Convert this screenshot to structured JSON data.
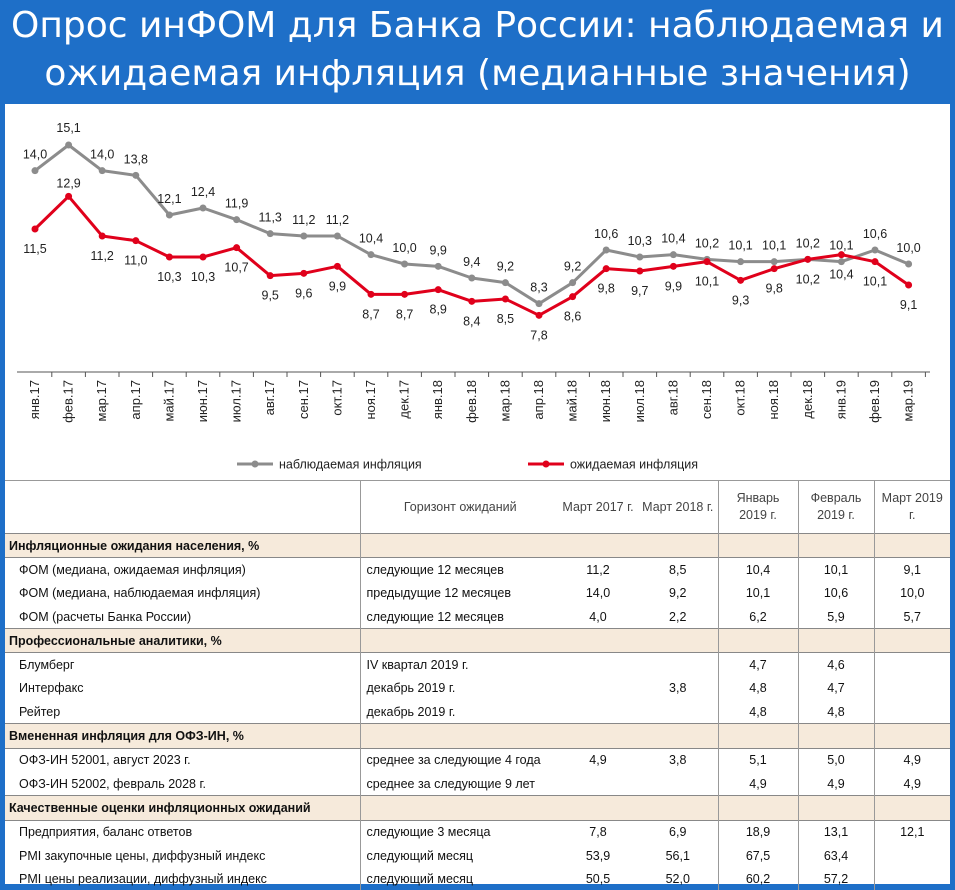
{
  "banner": {
    "line1": "Опрос инФОМ для Банка России: наблюдаемая и",
    "line2": "ожидаемая инфляция (медианные значения)"
  },
  "chart_data": {
    "type": "line",
    "categories": [
      "янв.17",
      "фев.17",
      "мар.17",
      "апр.17",
      "май.17",
      "июн.17",
      "июл.17",
      "авг.17",
      "сен.17",
      "окт.17",
      "ноя.17",
      "дек.17",
      "янв.18",
      "фев.18",
      "мар.18",
      "апр.18",
      "май.18",
      "июн.18",
      "июл.18",
      "авг.18",
      "сен.18",
      "окт.18",
      "ноя.18",
      "дек.18",
      "янв.19",
      "фев.19",
      "мар.19"
    ],
    "series": [
      {
        "name": "наблюдаемая инфляция",
        "color": "#8c8c8c",
        "values": [
          14.0,
          15.1,
          14.0,
          13.8,
          12.1,
          12.4,
          11.9,
          11.3,
          11.2,
          11.2,
          10.4,
          10.0,
          9.9,
          9.4,
          9.2,
          8.3,
          9.2,
          10.6,
          10.3,
          10.4,
          10.2,
          10.1,
          10.1,
          10.2,
          10.1,
          10.6,
          10.0
        ],
        "labels": [
          "14,0",
          "15,1",
          "14,0",
          "13,8",
          "12,1",
          "12,4",
          "11,9",
          "11,3",
          "11,2",
          "11,2",
          "10,4",
          "10,0",
          "9,9",
          "9,4",
          "9,2",
          "8,3",
          "9,2",
          "10,6",
          "10,3",
          "10,4",
          "10,2",
          "10,1",
          "10,1",
          "10,2",
          "10,1",
          "10,6",
          "10,0"
        ]
      },
      {
        "name": "ожидаемая инфляция",
        "color": "#e0001b",
        "values": [
          11.5,
          12.9,
          11.2,
          11.0,
          10.3,
          10.3,
          10.7,
          9.5,
          9.6,
          9.9,
          8.7,
          8.7,
          8.9,
          8.4,
          8.5,
          7.8,
          8.6,
          9.8,
          9.7,
          9.9,
          10.1,
          9.3,
          9.8,
          10.2,
          10.4,
          10.1,
          9.1
        ],
        "labels": [
          "11,5",
          "12,9",
          "11,2",
          "11,0",
          "10,3",
          "10,3",
          "10,7",
          "9,5",
          "9,6",
          "9,9",
          "8,7",
          "8,7",
          "8,9",
          "8,4",
          "8,5",
          "7,8",
          "8,6",
          "9,8",
          "9,7",
          "9,9",
          "10,1",
          "9,3",
          "9,8",
          "10,2",
          "10,4",
          "10,1",
          "9,1"
        ]
      }
    ],
    "ylim": [
      7.0,
      16.0
    ],
    "grid": false,
    "legend": "bottom"
  },
  "table": {
    "header": {
      "horizon": "Горизонт ожиданий",
      "cols": [
        "Март 2017 г.",
        "Март 2018 г.",
        "Январь 2019 г.",
        "Февраль 2019 г.",
        "Март 2019 г."
      ]
    },
    "sections": [
      {
        "title": "Инфляционные ожидания населения, %",
        "rows": [
          {
            "label": "ФОМ (медиана, ожидаемая инфляция)",
            "horizon": "следующие 12 месяцев",
            "values": [
              "11,2",
              "8,5",
              "10,4",
              "10,1",
              "9,1"
            ]
          },
          {
            "label": "ФОМ (медиана, наблюдаемая инфляция)",
            "horizon": "предыдущие 12 месяцев",
            "values": [
              "14,0",
              "9,2",
              "10,1",
              "10,6",
              "10,0"
            ]
          },
          {
            "label": "ФОМ (расчеты Банка России)",
            "horizon": "следующие 12 месяцев",
            "values": [
              "4,0",
              "2,2",
              "6,2",
              "5,9",
              "5,7"
            ]
          }
        ]
      },
      {
        "title": "Профессиональные аналитики, %",
        "rows": [
          {
            "label": "Блумберг",
            "horizon": "IV квартал 2019 г.",
            "values": [
              "",
              "",
              "4,7",
              "4,6",
              ""
            ]
          },
          {
            "label": "Интерфакс",
            "horizon": "декабрь 2019 г.",
            "values": [
              "",
              "3,8",
              "4,8",
              "4,7",
              ""
            ]
          },
          {
            "label": "Рейтер",
            "horizon": "декабрь 2019 г.",
            "values": [
              "",
              "",
              "4,8",
              "4,8",
              ""
            ]
          }
        ]
      },
      {
        "title": "Вмененная инфляция для ОФЗ-ИН, %",
        "rows": [
          {
            "label": "ОФЗ-ИН 52001, август 2023 г.",
            "horizon": "среднее за следующие 4 года",
            "values": [
              "4,9",
              "3,8",
              "5,1",
              "5,0",
              "4,9"
            ]
          },
          {
            "label": "ОФЗ-ИН 52002, февраль 2028 г.",
            "horizon": "среднее за следующие 9 лет",
            "values": [
              "",
              "",
              "4,9",
              "4,9",
              "4,9"
            ]
          }
        ]
      },
      {
        "title": "Качественные оценки инфляционных ожиданий",
        "rows": [
          {
            "label": "Предприятия, баланс ответов",
            "horizon": "следующие 3 месяца",
            "values": [
              "7,8",
              "6,9",
              "18,9",
              "13,1",
              "12,1"
            ]
          },
          {
            "label": "PMI закупочные цены, диффузный индекс",
            "horizon": "следующий месяц",
            "values": [
              "53,9",
              "56,1",
              "67,5",
              "63,4",
              ""
            ]
          },
          {
            "label": "PMI цены реализации, диффузный индекс",
            "horizon": "следующий месяц",
            "values": [
              "50,5",
              "52,0",
              "60,2",
              "57,2",
              ""
            ]
          }
        ]
      }
    ]
  }
}
